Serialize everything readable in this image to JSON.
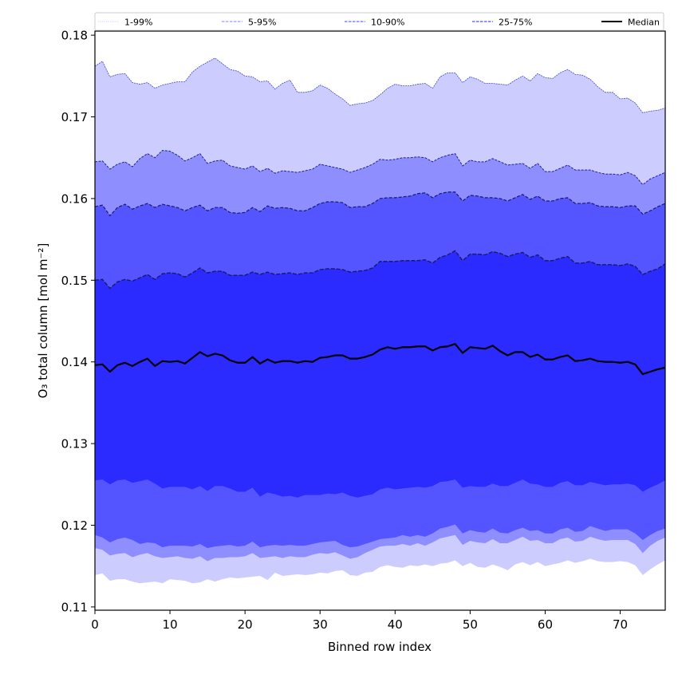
{
  "chart_data": {
    "type": "area",
    "title": "",
    "xlabel": "Binned row index",
    "ylabel": "O₃ total column [mol m⁻²]",
    "xlim": [
      0,
      76
    ],
    "ylim": [
      0.1096,
      0.1805
    ],
    "grid": false,
    "legend_placement": "top",
    "x_ticks": [
      0,
      10,
      20,
      30,
      40,
      50,
      60,
      70
    ],
    "x_tick_labels": [
      "0",
      "10",
      "20",
      "30",
      "40",
      "50",
      "60",
      "70"
    ],
    "y_ticks": [
      0.11,
      0.12,
      0.13,
      0.14,
      0.15,
      0.16,
      0.17,
      0.18
    ],
    "y_tick_labels": [
      "0.11",
      "0.12",
      "0.13",
      "0.14",
      "0.15",
      "0.16",
      "0.17",
      "0.18"
    ],
    "legend": [
      {
        "label": "1-99%",
        "style": "dotted",
        "color": "#ccccff"
      },
      {
        "label": "5-95%",
        "style": "dashed",
        "color": "#9a9aff"
      },
      {
        "label": "10-90%",
        "style": "dashed",
        "color": "#6868ff"
      },
      {
        "label": "25-75%",
        "style": "dashed",
        "color": "#5050ee"
      },
      {
        "label": "Median",
        "style": "solid",
        "color": "#000000"
      }
    ],
    "colors": {
      "band_1_99": "#ccccff",
      "band_5_95": "#8e8eff",
      "band_10_90": "#5555ff",
      "band_25_75": "#2b2bff",
      "median": "#000000",
      "edge_1_99": "#4444cc",
      "edge_5_95": "#222299",
      "edge_10_90": "#1a1a66"
    },
    "series": [
      {
        "name": "p99",
        "values": [
          0.1762,
          0.1768,
          0.1749,
          0.1752,
          0.1753,
          0.1742,
          0.174,
          0.1742,
          0.1735,
          0.1739,
          0.1741,
          0.1743,
          0.1743,
          0.1755,
          0.1762,
          0.1767,
          0.1772,
          0.1765,
          0.1758,
          0.1756,
          0.175,
          0.1749,
          0.1743,
          0.1744,
          0.1734,
          0.1741,
          0.1745,
          0.173,
          0.173,
          0.1732,
          0.1739,
          0.1735,
          0.1728,
          0.1722,
          0.1714,
          0.1716,
          0.1717,
          0.172,
          0.1727,
          0.1735,
          0.174,
          0.1738,
          0.1738,
          0.174,
          0.1741,
          0.1735,
          0.1749,
          0.1754,
          0.1754,
          0.1742,
          0.1749,
          0.1746,
          0.1741,
          0.1741,
          0.174,
          0.1739,
          0.1745,
          0.175,
          0.1744,
          0.1753,
          0.1748,
          0.1747,
          0.1754,
          0.1758,
          0.1752,
          0.1751,
          0.1746,
          0.1737,
          0.173,
          0.173,
          0.1722,
          0.1723,
          0.1717,
          0.1705,
          0.1707,
          0.1708,
          0.1711
        ]
      },
      {
        "name": "p95",
        "values": [
          0.1645,
          0.1646,
          0.1636,
          0.1642,
          0.1645,
          0.1639,
          0.1649,
          0.1655,
          0.165,
          0.1659,
          0.1658,
          0.1653,
          0.1646,
          0.165,
          0.1655,
          0.1643,
          0.1646,
          0.1647,
          0.164,
          0.1638,
          0.1636,
          0.164,
          0.1633,
          0.1637,
          0.1631,
          0.1634,
          0.1633,
          0.1632,
          0.1634,
          0.1636,
          0.1642,
          0.164,
          0.1638,
          0.1636,
          0.1632,
          0.1635,
          0.1638,
          0.1642,
          0.1648,
          0.1647,
          0.1648,
          0.165,
          0.165,
          0.1651,
          0.165,
          0.1645,
          0.165,
          0.1653,
          0.1655,
          0.164,
          0.1647,
          0.1645,
          0.1645,
          0.1649,
          0.1645,
          0.1641,
          0.1642,
          0.1643,
          0.1637,
          0.1643,
          0.1633,
          0.1633,
          0.1637,
          0.1641,
          0.1635,
          0.1635,
          0.1635,
          0.1632,
          0.163,
          0.163,
          0.1629,
          0.1632,
          0.1628,
          0.1617,
          0.1624,
          0.1628,
          0.1632
        ]
      },
      {
        "name": "p90",
        "values": [
          0.159,
          0.1592,
          0.1579,
          0.1589,
          0.1593,
          0.1587,
          0.1591,
          0.1594,
          0.1589,
          0.1593,
          0.1591,
          0.1589,
          0.1585,
          0.1589,
          0.1592,
          0.1585,
          0.1589,
          0.1589,
          0.1583,
          0.1582,
          0.1583,
          0.1589,
          0.1584,
          0.1591,
          0.1588,
          0.1589,
          0.1588,
          0.1585,
          0.1585,
          0.1589,
          0.1594,
          0.1596,
          0.1596,
          0.1595,
          0.1589,
          0.159,
          0.159,
          0.1594,
          0.16,
          0.1601,
          0.1601,
          0.1602,
          0.1603,
          0.1606,
          0.1607,
          0.1601,
          0.1606,
          0.1608,
          0.1608,
          0.1597,
          0.1604,
          0.1603,
          0.1601,
          0.1601,
          0.16,
          0.1597,
          0.1601,
          0.1605,
          0.1599,
          0.1603,
          0.1597,
          0.1597,
          0.16,
          0.1601,
          0.1594,
          0.1594,
          0.1595,
          0.1591,
          0.159,
          0.159,
          0.1589,
          0.1591,
          0.1591,
          0.1581,
          0.1585,
          0.159,
          0.1594
        ]
      },
      {
        "name": "p75",
        "values": [
          0.15,
          0.1501,
          0.149,
          0.1498,
          0.1501,
          0.1499,
          0.1503,
          0.1507,
          0.1501,
          0.1508,
          0.1509,
          0.1508,
          0.1504,
          0.1509,
          0.1515,
          0.1509,
          0.1511,
          0.1511,
          0.1506,
          0.1506,
          0.1506,
          0.151,
          0.1507,
          0.151,
          0.1507,
          0.1508,
          0.1509,
          0.1507,
          0.1509,
          0.1509,
          0.1513,
          0.1514,
          0.1514,
          0.1513,
          0.151,
          0.1511,
          0.1512,
          0.1515,
          0.1523,
          0.1523,
          0.1523,
          0.1524,
          0.1524,
          0.1524,
          0.1525,
          0.1521,
          0.1528,
          0.1531,
          0.1536,
          0.1524,
          0.1532,
          0.1532,
          0.1531,
          0.1535,
          0.1533,
          0.1529,
          0.1532,
          0.1534,
          0.1528,
          0.1531,
          0.1524,
          0.1524,
          0.1527,
          0.1529,
          0.1521,
          0.1521,
          0.1523,
          0.1519,
          0.1519,
          0.1519,
          0.1518,
          0.152,
          0.1517,
          0.1507,
          0.1511,
          0.1514,
          0.152
        ]
      },
      {
        "name": "p50",
        "values": [
          0.1396,
          0.1397,
          0.1388,
          0.1396,
          0.1399,
          0.1395,
          0.14,
          0.1404,
          0.1395,
          0.1401,
          0.14,
          0.1401,
          0.1398,
          0.1405,
          0.1412,
          0.1407,
          0.141,
          0.1408,
          0.1402,
          0.1399,
          0.1399,
          0.1406,
          0.1398,
          0.1403,
          0.1399,
          0.1401,
          0.1401,
          0.1399,
          0.1401,
          0.14,
          0.1405,
          0.1406,
          0.1408,
          0.1408,
          0.1404,
          0.1404,
          0.1406,
          0.1409,
          0.1415,
          0.1418,
          0.1416,
          0.1418,
          0.1418,
          0.1419,
          0.1419,
          0.1414,
          0.1418,
          0.1419,
          0.1422,
          0.1411,
          0.1418,
          0.1417,
          0.1416,
          0.142,
          0.1413,
          0.1408,
          0.1412,
          0.1412,
          0.1406,
          0.1409,
          0.1403,
          0.1403,
          0.1406,
          0.1408,
          0.1401,
          0.1402,
          0.1404,
          0.1401,
          0.14,
          0.14,
          0.1399,
          0.14,
          0.1397,
          0.1385,
          0.1388,
          0.1391,
          0.1393
        ]
      },
      {
        "name": "p25",
        "values": [
          0.1255,
          0.1256,
          0.125,
          0.1255,
          0.1256,
          0.1252,
          0.1254,
          0.1256,
          0.1251,
          0.1245,
          0.1247,
          0.1247,
          0.1247,
          0.1244,
          0.1248,
          0.1242,
          0.1248,
          0.1248,
          0.1245,
          0.1241,
          0.1241,
          0.1246,
          0.1235,
          0.124,
          0.1238,
          0.1235,
          0.1236,
          0.1234,
          0.1237,
          0.1237,
          0.1237,
          0.1239,
          0.1238,
          0.124,
          0.1236,
          0.1234,
          0.1236,
          0.1238,
          0.1244,
          0.1246,
          0.1244,
          0.1245,
          0.1246,
          0.1247,
          0.1246,
          0.1248,
          0.1253,
          0.1254,
          0.1256,
          0.1246,
          0.1248,
          0.1247,
          0.1247,
          0.1251,
          0.1248,
          0.1248,
          0.1252,
          0.1256,
          0.1251,
          0.125,
          0.1247,
          0.1247,
          0.1252,
          0.1254,
          0.1249,
          0.1249,
          0.1253,
          0.1251,
          0.1249,
          0.125,
          0.125,
          0.1251,
          0.1249,
          0.1241,
          0.1246,
          0.125,
          0.1255
        ]
      },
      {
        "name": "p10",
        "values": [
          0.1188,
          0.1185,
          0.1179,
          0.1183,
          0.1185,
          0.1182,
          0.1177,
          0.1179,
          0.1178,
          0.1173,
          0.1175,
          0.1175,
          0.1175,
          0.1174,
          0.1177,
          0.1172,
          0.1174,
          0.1175,
          0.1176,
          0.1174,
          0.1175,
          0.118,
          0.1173,
          0.1175,
          0.1176,
          0.1175,
          0.1176,
          0.1175,
          0.1175,
          0.1177,
          0.1179,
          0.118,
          0.1181,
          0.1176,
          0.1173,
          0.1174,
          0.1177,
          0.118,
          0.1183,
          0.1184,
          0.1185,
          0.1188,
          0.1186,
          0.1188,
          0.1186,
          0.119,
          0.1196,
          0.1198,
          0.1201,
          0.119,
          0.1194,
          0.1192,
          0.1191,
          0.1196,
          0.1191,
          0.119,
          0.1194,
          0.1197,
          0.1193,
          0.1194,
          0.119,
          0.119,
          0.1195,
          0.1197,
          0.1192,
          0.1193,
          0.1199,
          0.1196,
          0.1193,
          0.1195,
          0.1195,
          0.1195,
          0.119,
          0.1182,
          0.1188,
          0.1193,
          0.1196
        ]
      },
      {
        "name": "p5",
        "values": [
          0.1172,
          0.117,
          0.1163,
          0.1165,
          0.1166,
          0.1161,
          0.1164,
          0.1166,
          0.1162,
          0.116,
          0.1161,
          0.1162,
          0.116,
          0.1159,
          0.1162,
          0.1156,
          0.116,
          0.116,
          0.1161,
          0.1161,
          0.1162,
          0.1166,
          0.116,
          0.1161,
          0.1162,
          0.116,
          0.1162,
          0.1161,
          0.1161,
          0.1164,
          0.1166,
          0.1165,
          0.1167,
          0.1163,
          0.1159,
          0.1161,
          0.1166,
          0.117,
          0.1174,
          0.1175,
          0.1175,
          0.1177,
          0.1175,
          0.1178,
          0.1175,
          0.1179,
          0.1184,
          0.1186,
          0.1188,
          0.1176,
          0.1181,
          0.1179,
          0.1178,
          0.1183,
          0.1178,
          0.1178,
          0.1182,
          0.1186,
          0.1181,
          0.1182,
          0.1178,
          0.1178,
          0.1183,
          0.1185,
          0.118,
          0.1181,
          0.1186,
          0.1183,
          0.1181,
          0.1182,
          0.1182,
          0.1182,
          0.1177,
          0.1166,
          0.1175,
          0.1181,
          0.1185
        ]
      },
      {
        "name": "p1",
        "values": [
          0.1139,
          0.1141,
          0.1132,
          0.1134,
          0.1134,
          0.1131,
          0.1129,
          0.113,
          0.1131,
          0.1129,
          0.1134,
          0.1133,
          0.1132,
          0.1129,
          0.113,
          0.1134,
          0.1131,
          0.1134,
          0.1136,
          0.1135,
          0.1136,
          0.1137,
          0.1138,
          0.1133,
          0.1142,
          0.1138,
          0.1139,
          0.114,
          0.1139,
          0.114,
          0.1142,
          0.1141,
          0.1144,
          0.1145,
          0.1139,
          0.1138,
          0.1142,
          0.1143,
          0.1149,
          0.1151,
          0.1149,
          0.1148,
          0.1151,
          0.115,
          0.1152,
          0.115,
          0.1153,
          0.1154,
          0.1157,
          0.115,
          0.1154,
          0.1149,
          0.1148,
          0.1152,
          0.1149,
          0.1145,
          0.1152,
          0.1155,
          0.1151,
          0.1155,
          0.115,
          0.1152,
          0.1154,
          0.1157,
          0.1154,
          0.1156,
          0.1159,
          0.1156,
          0.1155,
          0.1155,
          0.1156,
          0.1155,
          0.1151,
          0.1139,
          0.1146,
          0.1152,
          0.1157
        ]
      }
    ]
  }
}
